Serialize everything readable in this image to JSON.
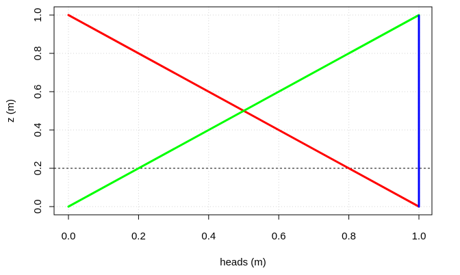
{
  "chart_data": {
    "type": "line",
    "title": "",
    "xlabel": "heads (m)",
    "ylabel": "z (m)",
    "xlim": [
      0,
      1
    ],
    "ylim": [
      0,
      1
    ],
    "x_ticks": [
      0.0,
      0.2,
      0.4,
      0.6,
      0.8,
      1.0
    ],
    "y_ticks": [
      0.0,
      0.2,
      0.4,
      0.6,
      0.8,
      1.0
    ],
    "x_tick_labels": [
      "0.0",
      "0.2",
      "0.4",
      "0.6",
      "0.8",
      "1.0"
    ],
    "y_tick_labels": [
      "0.0",
      "0.2",
      "0.4",
      "0.6",
      "0.8",
      "1.0"
    ],
    "grid": true,
    "series": [
      {
        "color": "#ff0000",
        "points": [
          {
            "x": 0,
            "y": 1
          },
          {
            "x": 1,
            "y": 0
          }
        ]
      },
      {
        "color": "#00ff00",
        "points": [
          {
            "x": 0,
            "y": 0
          },
          {
            "x": 1,
            "y": 1
          }
        ]
      },
      {
        "color": "#0000ff",
        "style": "dotted",
        "points": [
          {
            "x": 1,
            "y": 0
          },
          {
            "x": 1,
            "y": 1
          }
        ]
      }
    ],
    "reference_lines": [
      {
        "orientation": "horizontal",
        "y": 0.2,
        "style": "dashed",
        "color": "#000000"
      }
    ]
  }
}
